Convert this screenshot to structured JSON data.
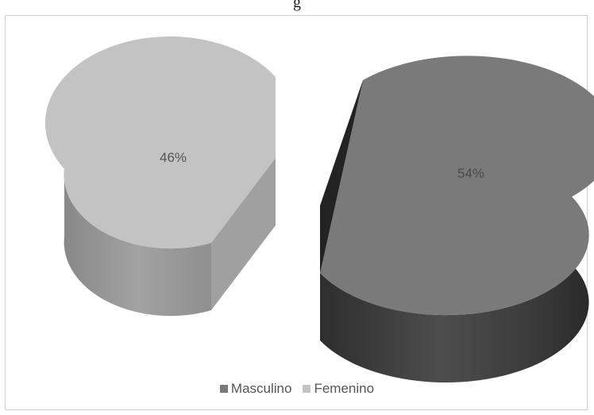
{
  "page": {
    "title_fragment": "g"
  },
  "chart_data": {
    "type": "pie",
    "title": "",
    "slices": [
      {
        "name": "Masculino",
        "value": 54,
        "label": "54%",
        "color": "#7a7a7a"
      },
      {
        "name": "Femenino",
        "value": 46,
        "label": "46%",
        "color": "#c3c3c3"
      }
    ],
    "legend_position": "bottom",
    "style": "3d-exploded"
  }
}
